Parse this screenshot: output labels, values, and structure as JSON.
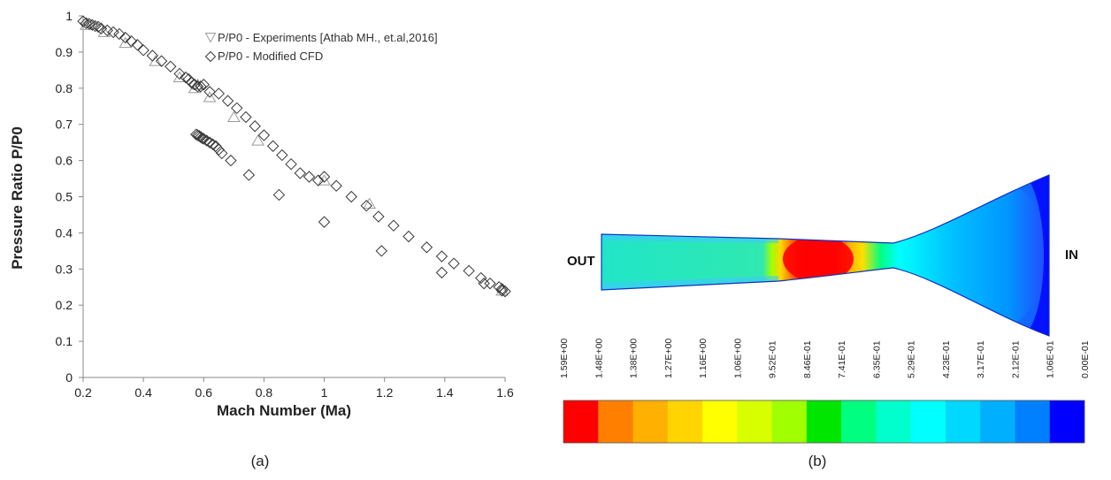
{
  "chart_data": [
    {
      "type": "scatter",
      "panel_label": "(a)",
      "xlabel": "Mach Number (Ma)",
      "ylabel": "Pressure Ratio P/P0",
      "xlim": [
        0.2,
        1.6
      ],
      "ylim": [
        0,
        1
      ],
      "xticks": [
        "0.2",
        "0.4",
        "0.6",
        "0.8",
        "1",
        "1.2",
        "1.4",
        "1.6"
      ],
      "yticks": [
        "0",
        "0.1",
        "0.2",
        "0.3",
        "0.4",
        "0.5",
        "0.6",
        "0.7",
        "0.8",
        "0.9",
        "1"
      ],
      "grid": false,
      "legend": "top-right",
      "series": [
        {
          "name": "P/P0 - Experiments [Athab MH., et.al,2016]",
          "marker": "triangle",
          "color": "#9a9a9a",
          "x": [
            0.21,
            0.27,
            0.34,
            0.44,
            0.52,
            0.57,
            0.58,
            0.62,
            0.7,
            0.78,
            1.0,
            1.15,
            1.59
          ],
          "y": [
            0.975,
            0.955,
            0.925,
            0.875,
            0.83,
            0.8,
            0.81,
            0.775,
            0.72,
            0.655,
            0.545,
            0.48,
            0.24
          ]
        },
        {
          "name": "P/P0 - Modified CFD",
          "marker": "diamond",
          "color": "#3a3a3a",
          "x": [
            0.2,
            0.21,
            0.22,
            0.23,
            0.24,
            0.25,
            0.26,
            0.28,
            0.3,
            0.32,
            0.34,
            0.36,
            0.38,
            0.4,
            0.43,
            0.46,
            0.49,
            0.52,
            0.54,
            0.55,
            0.56,
            0.57,
            0.58,
            0.59,
            0.6,
            0.62,
            0.65,
            0.68,
            0.71,
            0.74,
            0.77,
            0.8,
            0.83,
            0.86,
            0.89,
            0.92,
            0.95,
            0.98,
            1.0,
            1.04,
            1.09,
            1.14,
            1.18,
            1.23,
            1.28,
            1.34,
            1.39,
            1.43,
            1.48,
            1.52,
            1.55,
            1.58,
            1.59,
            1.6,
            1.59,
            1.53,
            1.39,
            1.19,
            1.0,
            0.85,
            0.75,
            0.69,
            0.66,
            0.65,
            0.64,
            0.63,
            0.62,
            0.61,
            0.6,
            0.595,
            0.59,
            0.585,
            0.58,
            0.575
          ],
          "y": [
            0.985,
            0.98,
            0.978,
            0.975,
            0.972,
            0.97,
            0.965,
            0.96,
            0.955,
            0.95,
            0.94,
            0.93,
            0.92,
            0.905,
            0.89,
            0.875,
            0.86,
            0.84,
            0.83,
            0.825,
            0.815,
            0.81,
            0.805,
            0.805,
            0.81,
            0.79,
            0.785,
            0.765,
            0.745,
            0.72,
            0.695,
            0.67,
            0.64,
            0.615,
            0.59,
            0.565,
            0.555,
            0.545,
            0.555,
            0.53,
            0.5,
            0.475,
            0.445,
            0.42,
            0.39,
            0.36,
            0.335,
            0.315,
            0.295,
            0.275,
            0.26,
            0.25,
            0.24,
            0.238,
            0.245,
            0.26,
            0.29,
            0.35,
            0.43,
            0.505,
            0.56,
            0.6,
            0.62,
            0.63,
            0.64,
            0.645,
            0.65,
            0.655,
            0.66,
            0.662,
            0.665,
            0.668,
            0.67,
            0.672
          ]
        }
      ]
    },
    {
      "type": "heatmap",
      "panel_label": "(b)",
      "labels": {
        "outlet": "OUT",
        "inlet": "IN"
      },
      "colorbar_ticks": [
        "1.59E+00",
        "1.48E+00",
        "1.38E+00",
        "1.27E+00",
        "1.16E+00",
        "1.06E+00",
        "9.52E-01",
        "8.46E-01",
        "7.41E-01",
        "6.35E-01",
        "5.29E-01",
        "4.23E-01",
        "3.17E-01",
        "2.12E-01",
        "1.06E-01",
        "0.00E-01"
      ],
      "colorbar_colors": [
        "#ff0000",
        "#ff8000",
        "#ffb000",
        "#ffd400",
        "#ffff00",
        "#d8ff00",
        "#a0ff00",
        "#00e600",
        "#00ff80",
        "#00ffcc",
        "#00ffff",
        "#00d8ff",
        "#00b0ff",
        "#0080ff",
        "#0000ff"
      ]
    }
  ]
}
